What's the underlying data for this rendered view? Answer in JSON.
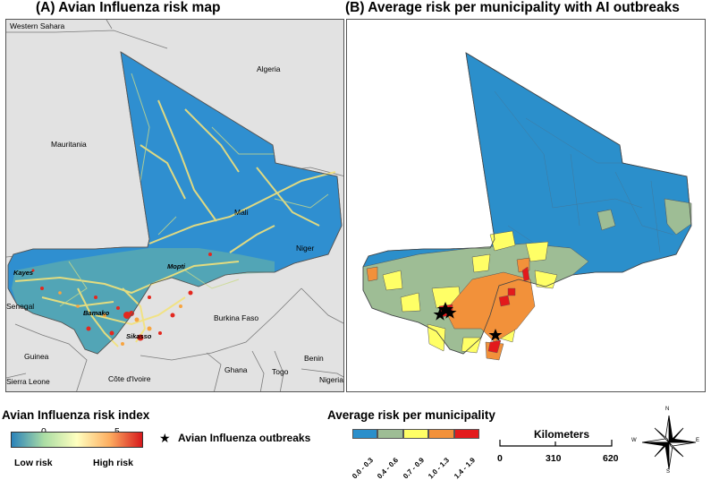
{
  "panel_a": {
    "title": "(A) Avian Influenza risk map",
    "countries": {
      "western_sahara": "Western Sahara",
      "algeria": "Algeria",
      "mauritania": "Mauritania",
      "mali": "Mali",
      "niger": "Niger",
      "senegal": "Senegal",
      "burkina_faso": "Burkina Faso",
      "guinea": "Guinea",
      "ghana": "Ghana",
      "togo": "Togo",
      "benin": "Benin",
      "sierra_leone": "Sierra Leone",
      "cote_divoire": "Côte d'Ivoire",
      "nigeria": "Nigeria"
    },
    "cities": {
      "kayes": "Kayes",
      "mopti": "Mopti",
      "bamako": "Bamako",
      "sikasso": "Sikasso"
    }
  },
  "panel_b": {
    "title": "(B) Average risk per municipality with AI outbreaks"
  },
  "legend": {
    "risk_index_title": "Avian Influenza risk index",
    "scale_min": "0",
    "scale_max": "5",
    "low_label": "Low risk",
    "high_label": "High risk",
    "gradient_colors": [
      "#2b83ba",
      "#abdda4",
      "#ffffbf",
      "#fdae61",
      "#d7191c"
    ],
    "outbreak_label": "Avian Influenza outbreaks",
    "municipality_title": "Average risk per municipality",
    "classes": [
      {
        "label": "0.0 - 0.3",
        "color": "#2b8fcb"
      },
      {
        "label": "0.4 - 0.6",
        "color": "#9ebd95"
      },
      {
        "label": "0.7 - 0.9",
        "color": "#ffff66"
      },
      {
        "label": "1.0 - 1.3",
        "color": "#f2913a"
      },
      {
        "label": "1.4 - 1.9",
        "color": "#e31a1c"
      }
    ]
  },
  "scale_bar": {
    "title": "Kilometers",
    "ticks": [
      "0",
      "310",
      "620"
    ]
  },
  "compass": {
    "n": "N",
    "s": "S",
    "e": "E",
    "w": "W"
  }
}
